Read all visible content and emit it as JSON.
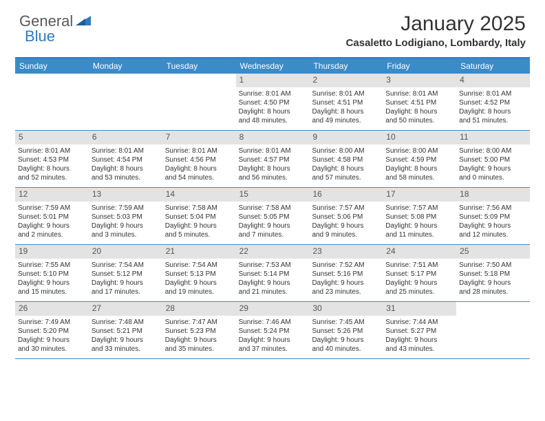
{
  "brand": {
    "part1": "General",
    "part2": "Blue"
  },
  "title": "January 2025",
  "location": "Casaletto Lodigiano, Lombardy, Italy",
  "colors": {
    "header_bar": "#3b8bc9",
    "accent": "#2f7bbf",
    "daynum_bg": "#e3e3e3",
    "text": "#333333",
    "logo_gray": "#5a5a5a"
  },
  "weekdays": [
    "Sunday",
    "Monday",
    "Tuesday",
    "Wednesday",
    "Thursday",
    "Friday",
    "Saturday"
  ],
  "weeks": [
    [
      null,
      null,
      null,
      {
        "n": "1",
        "sunrise": "8:01 AM",
        "sunset": "4:50 PM",
        "dl1": "Daylight: 8 hours",
        "dl2": "and 48 minutes."
      },
      {
        "n": "2",
        "sunrise": "8:01 AM",
        "sunset": "4:51 PM",
        "dl1": "Daylight: 8 hours",
        "dl2": "and 49 minutes."
      },
      {
        "n": "3",
        "sunrise": "8:01 AM",
        "sunset": "4:51 PM",
        "dl1": "Daylight: 8 hours",
        "dl2": "and 50 minutes."
      },
      {
        "n": "4",
        "sunrise": "8:01 AM",
        "sunset": "4:52 PM",
        "dl1": "Daylight: 8 hours",
        "dl2": "and 51 minutes."
      }
    ],
    [
      {
        "n": "5",
        "sunrise": "8:01 AM",
        "sunset": "4:53 PM",
        "dl1": "Daylight: 8 hours",
        "dl2": "and 52 minutes."
      },
      {
        "n": "6",
        "sunrise": "8:01 AM",
        "sunset": "4:54 PM",
        "dl1": "Daylight: 8 hours",
        "dl2": "and 53 minutes."
      },
      {
        "n": "7",
        "sunrise": "8:01 AM",
        "sunset": "4:56 PM",
        "dl1": "Daylight: 8 hours",
        "dl2": "and 54 minutes."
      },
      {
        "n": "8",
        "sunrise": "8:01 AM",
        "sunset": "4:57 PM",
        "dl1": "Daylight: 8 hours",
        "dl2": "and 56 minutes."
      },
      {
        "n": "9",
        "sunrise": "8:00 AM",
        "sunset": "4:58 PM",
        "dl1": "Daylight: 8 hours",
        "dl2": "and 57 minutes."
      },
      {
        "n": "10",
        "sunrise": "8:00 AM",
        "sunset": "4:59 PM",
        "dl1": "Daylight: 8 hours",
        "dl2": "and 58 minutes."
      },
      {
        "n": "11",
        "sunrise": "8:00 AM",
        "sunset": "5:00 PM",
        "dl1": "Daylight: 9 hours",
        "dl2": "and 0 minutes."
      }
    ],
    [
      {
        "n": "12",
        "sunrise": "7:59 AM",
        "sunset": "5:01 PM",
        "dl1": "Daylight: 9 hours",
        "dl2": "and 2 minutes."
      },
      {
        "n": "13",
        "sunrise": "7:59 AM",
        "sunset": "5:03 PM",
        "dl1": "Daylight: 9 hours",
        "dl2": "and 3 minutes."
      },
      {
        "n": "14",
        "sunrise": "7:58 AM",
        "sunset": "5:04 PM",
        "dl1": "Daylight: 9 hours",
        "dl2": "and 5 minutes."
      },
      {
        "n": "15",
        "sunrise": "7:58 AM",
        "sunset": "5:05 PM",
        "dl1": "Daylight: 9 hours",
        "dl2": "and 7 minutes."
      },
      {
        "n": "16",
        "sunrise": "7:57 AM",
        "sunset": "5:06 PM",
        "dl1": "Daylight: 9 hours",
        "dl2": "and 9 minutes."
      },
      {
        "n": "17",
        "sunrise": "7:57 AM",
        "sunset": "5:08 PM",
        "dl1": "Daylight: 9 hours",
        "dl2": "and 11 minutes."
      },
      {
        "n": "18",
        "sunrise": "7:56 AM",
        "sunset": "5:09 PM",
        "dl1": "Daylight: 9 hours",
        "dl2": "and 12 minutes."
      }
    ],
    [
      {
        "n": "19",
        "sunrise": "7:55 AM",
        "sunset": "5:10 PM",
        "dl1": "Daylight: 9 hours",
        "dl2": "and 15 minutes."
      },
      {
        "n": "20",
        "sunrise": "7:54 AM",
        "sunset": "5:12 PM",
        "dl1": "Daylight: 9 hours",
        "dl2": "and 17 minutes."
      },
      {
        "n": "21",
        "sunrise": "7:54 AM",
        "sunset": "5:13 PM",
        "dl1": "Daylight: 9 hours",
        "dl2": "and 19 minutes."
      },
      {
        "n": "22",
        "sunrise": "7:53 AM",
        "sunset": "5:14 PM",
        "dl1": "Daylight: 9 hours",
        "dl2": "and 21 minutes."
      },
      {
        "n": "23",
        "sunrise": "7:52 AM",
        "sunset": "5:16 PM",
        "dl1": "Daylight: 9 hours",
        "dl2": "and 23 minutes."
      },
      {
        "n": "24",
        "sunrise": "7:51 AM",
        "sunset": "5:17 PM",
        "dl1": "Daylight: 9 hours",
        "dl2": "and 25 minutes."
      },
      {
        "n": "25",
        "sunrise": "7:50 AM",
        "sunset": "5:18 PM",
        "dl1": "Daylight: 9 hours",
        "dl2": "and 28 minutes."
      }
    ],
    [
      {
        "n": "26",
        "sunrise": "7:49 AM",
        "sunset": "5:20 PM",
        "dl1": "Daylight: 9 hours",
        "dl2": "and 30 minutes."
      },
      {
        "n": "27",
        "sunrise": "7:48 AM",
        "sunset": "5:21 PM",
        "dl1": "Daylight: 9 hours",
        "dl2": "and 33 minutes."
      },
      {
        "n": "28",
        "sunrise": "7:47 AM",
        "sunset": "5:23 PM",
        "dl1": "Daylight: 9 hours",
        "dl2": "and 35 minutes."
      },
      {
        "n": "29",
        "sunrise": "7:46 AM",
        "sunset": "5:24 PM",
        "dl1": "Daylight: 9 hours",
        "dl2": "and 37 minutes."
      },
      {
        "n": "30",
        "sunrise": "7:45 AM",
        "sunset": "5:26 PM",
        "dl1": "Daylight: 9 hours",
        "dl2": "and 40 minutes."
      },
      {
        "n": "31",
        "sunrise": "7:44 AM",
        "sunset": "5:27 PM",
        "dl1": "Daylight: 9 hours",
        "dl2": "and 43 minutes."
      },
      null
    ]
  ],
  "labels": {
    "sunrise_prefix": "Sunrise: ",
    "sunset_prefix": "Sunset: "
  }
}
